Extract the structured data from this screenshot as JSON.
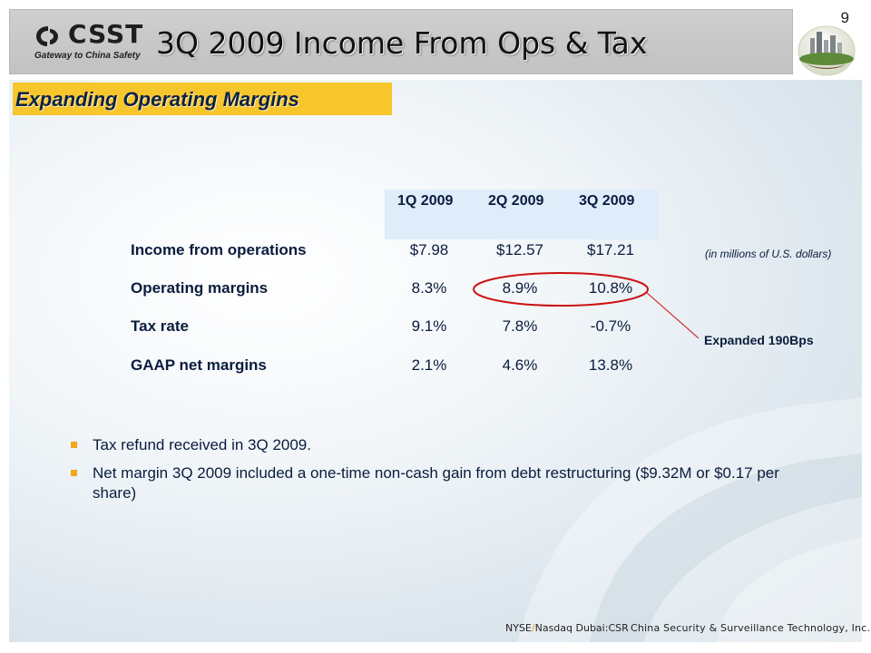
{
  "header": {
    "logo_text": "CSST",
    "logo_tagline": "Gateway to China Safety",
    "title": "3Q 2009 Income From Ops & Tax",
    "page_number": "9"
  },
  "subtitle": "Expanding Operating Margins",
  "table": {
    "columns": [
      "1Q 2009",
      "2Q 2009",
      "3Q 2009"
    ],
    "rows": [
      {
        "label": "Income from operations",
        "values": [
          "$7.98",
          "$12.57",
          "$17.21"
        ]
      },
      {
        "label": "Operating margins",
        "values": [
          "8.3%",
          "8.9%",
          "10.8%"
        ]
      },
      {
        "label": "Tax rate",
        "values": [
          "9.1%",
          "7.8%",
          "-0.7%"
        ]
      },
      {
        "label": "GAAP net margins",
        "values": [
          "2.1%",
          "4.6%",
          "13.8%"
        ]
      }
    ],
    "unit_note": "(in millions of U.S. dollars)",
    "callout": "Expanded 190Bps"
  },
  "bullets": [
    "Tax refund received in 3Q 2009.",
    "Net margin 3Q 2009 included a one-time non-cash gain from debt restructuring ($9.32M or $0.17 per share)"
  ],
  "footer": {
    "exchange_a": "NYSE",
    "exchange_sep": "/",
    "exchange_b": "Nasdaq Dubai:CSR",
    "company": "China Security & Surveillance Technology, Inc."
  },
  "colors": {
    "subtitle_bg": "#f7c52c",
    "header_bg": "#c8c8c8",
    "callout_ellipse": "#cc1111",
    "text_navy": "#0a1c3d"
  }
}
